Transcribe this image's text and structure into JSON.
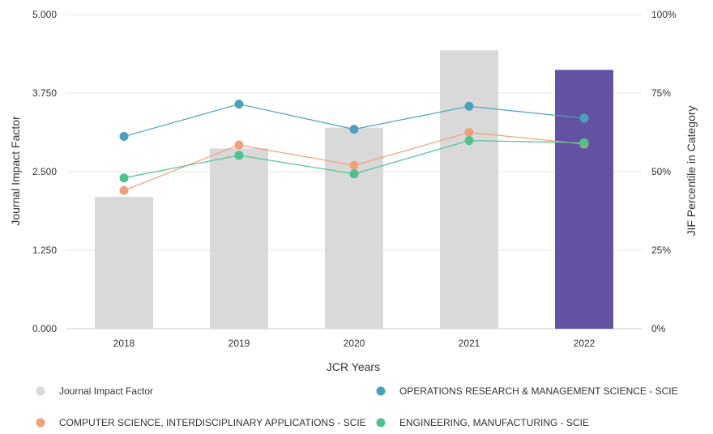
{
  "chart_data": {
    "type": "bar+line",
    "xlabel": "JCR Years",
    "ylabel_left": "Journal Impact Factor",
    "ylabel_right": "JIF Percentile in Category",
    "categories": [
      "2018",
      "2019",
      "2020",
      "2021",
      "2022"
    ],
    "left_axis": {
      "min": 0,
      "max": 5,
      "ticks": [
        "0.000",
        "1.250",
        "2.500",
        "3.750",
        "5.000"
      ],
      "tick_values": [
        0,
        1.25,
        2.5,
        3.75,
        5
      ]
    },
    "right_axis": {
      "min": 0,
      "max": 100,
      "ticks": [
        "0%",
        "25%",
        "50%",
        "75%",
        "100%"
      ],
      "tick_values": [
        0,
        25,
        50,
        75,
        100
      ]
    },
    "bars": {
      "name": "Journal Impact Factor",
      "values": [
        2.1,
        2.87,
        3.2,
        4.43,
        4.12
      ],
      "colors": [
        "#d9d9d9",
        "#d9d9d9",
        "#d9d9d9",
        "#d9d9d9",
        "#6351a3"
      ]
    },
    "series": [
      {
        "name": "OPERATIONS RESEARCH & MANAGEMENT SCIENCE - SCIE",
        "color": "#4aa1bb",
        "values": [
          61.2,
          71.5,
          63.5,
          70.8,
          67.0
        ]
      },
      {
        "name": "COMPUTER SCIENCE, INTERDISCIPLINARY APPLICATIONS - SCIE",
        "color": "#f0a07a",
        "values": [
          44.0,
          58.5,
          52.0,
          62.5,
          58.8
        ]
      },
      {
        "name": "ENGINEERING, MANUFACTURING - SCIE",
        "color": "#4fc18f",
        "values": [
          48.0,
          55.2,
          49.3,
          59.9,
          59.2
        ]
      }
    ],
    "legend": [
      {
        "label": "Journal Impact Factor",
        "color": "#d9d9d9"
      },
      {
        "label": "OPERATIONS RESEARCH & MANAGEMENT SCIENCE - SCIE",
        "color": "#4aa1bb"
      },
      {
        "label": "COMPUTER SCIENCE, INTERDISCIPLINARY APPLICATIONS - SCIE",
        "color": "#f0a07a"
      },
      {
        "label": "ENGINEERING, MANUFACTURING - SCIE",
        "color": "#4fc18f"
      }
    ],
    "grid": true
  }
}
